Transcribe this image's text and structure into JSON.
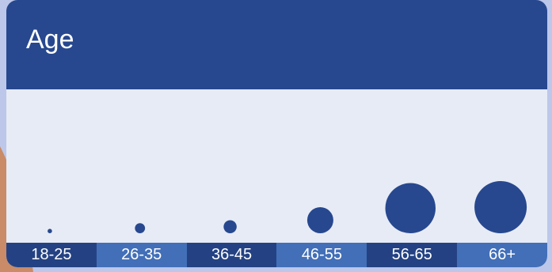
{
  "colors": {
    "background": "#bcc7ea",
    "header": "#27488f",
    "panel": "#e7ebf5",
    "marker": "#27488f",
    "bin_dark": "#244283",
    "bin_light": "#426fb8",
    "text_light": "#ffffff",
    "decor_tan": "#c98b68"
  },
  "chart_data": {
    "type": "bubble",
    "title": "Age",
    "xlabel": "",
    "ylabel": "",
    "categories": [
      "18-25",
      "26-35",
      "36-45",
      "46-55",
      "56-65",
      "66+"
    ],
    "values": [
      0.2,
      1.5,
      2.5,
      10,
      37,
      40
    ],
    "grid": false,
    "legend": "none"
  }
}
